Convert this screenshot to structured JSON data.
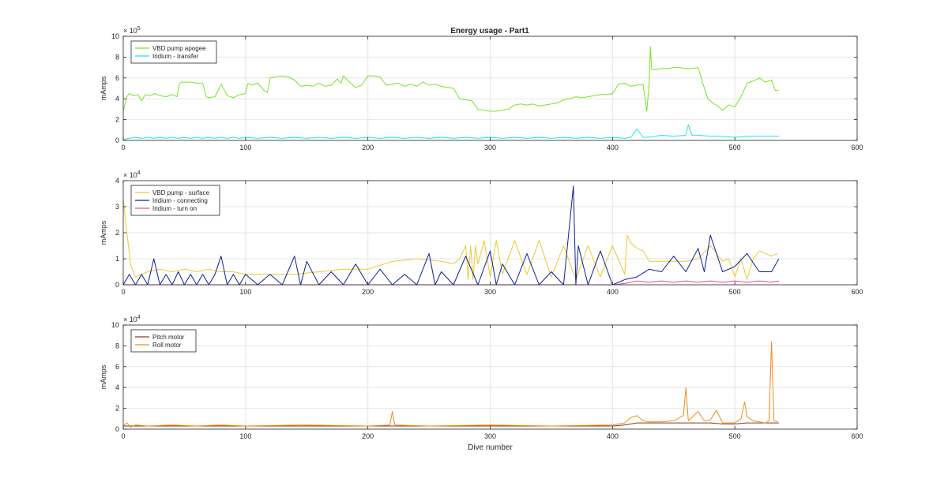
{
  "figure": {
    "title": "Energy usage - Part1"
  },
  "chart_data": [
    {
      "type": "line",
      "title": "Energy usage - Part1",
      "xlabel": "",
      "ylabel": "mAmps",
      "multiplier": {
        "base": "× 10",
        "exp": "5"
      },
      "xlim": [
        0,
        600
      ],
      "ylim": [
        0,
        10
      ],
      "xticks": [
        "0",
        "100",
        "200",
        "300",
        "400",
        "500",
        "600"
      ],
      "yticks": [
        "0",
        "2",
        "4",
        "6",
        "8",
        "10"
      ],
      "xtick_values": [
        0,
        100,
        200,
        300,
        400,
        500,
        600
      ],
      "ytick_values": [
        0,
        2,
        4,
        6,
        8,
        10
      ],
      "grid": true,
      "legend_position": "top-left",
      "series": [
        {
          "name": "VBD pump apogee",
          "color": "#77e522",
          "x": [
            0,
            3,
            5,
            8,
            12,
            15,
            18,
            22,
            26,
            30,
            35,
            40,
            44,
            46,
            48,
            55,
            60,
            65,
            68,
            70,
            75,
            80,
            85,
            90,
            95,
            100,
            102,
            105,
            110,
            115,
            118,
            120,
            125,
            130,
            135,
            140,
            145,
            150,
            155,
            160,
            165,
            170,
            175,
            178,
            180,
            185,
            190,
            195,
            200,
            205,
            210,
            215,
            220,
            225,
            230,
            235,
            240,
            245,
            250,
            255,
            260,
            265,
            270,
            275,
            280,
            285,
            290,
            295,
            300,
            305,
            310,
            315,
            320,
            325,
            330,
            335,
            340,
            345,
            350,
            355,
            360,
            365,
            370,
            375,
            380,
            385,
            390,
            395,
            400,
            405,
            410,
            415,
            420,
            425,
            428,
            430,
            431,
            432,
            435,
            440,
            445,
            450,
            455,
            460,
            465,
            470,
            474,
            478,
            482,
            486,
            490,
            495,
            500,
            505,
            510,
            515,
            520,
            525,
            530,
            533,
            536
          ],
          "values": [
            2.8,
            4.2,
            4.5,
            4.3,
            4.4,
            3.8,
            4.4,
            4.3,
            4.5,
            4.3,
            4.2,
            4.4,
            4.2,
            5.5,
            5.6,
            5.6,
            5.5,
            5.5,
            4.2,
            4.1,
            4.2,
            5.4,
            4.3,
            4.1,
            4.4,
            4.5,
            5.5,
            5.3,
            5.5,
            4.8,
            4.6,
            6.0,
            6.1,
            6.2,
            6.1,
            5.8,
            5.2,
            5.3,
            5.2,
            5.5,
            5.2,
            5.3,
            5.9,
            5.5,
            6.2,
            5.6,
            5.1,
            5.3,
            6.2,
            6.2,
            6.1,
            5.3,
            5.4,
            5.5,
            5.2,
            5.4,
            5.2,
            5.6,
            5.3,
            5.4,
            5.2,
            5.1,
            5.0,
            4.0,
            3.9,
            3.8,
            3.0,
            2.9,
            2.8,
            2.8,
            2.9,
            3.0,
            3.4,
            3.5,
            3.4,
            3.5,
            3.3,
            3.4,
            3.5,
            3.6,
            3.9,
            4.0,
            4.2,
            4.1,
            4.2,
            4.3,
            4.4,
            4.4,
            4.5,
            5.4,
            5.5,
            5.2,
            5.3,
            5.4,
            2.8,
            5.5,
            9.0,
            6.8,
            6.8,
            6.9,
            6.9,
            7.0,
            7.0,
            6.9,
            6.9,
            7.0,
            5.4,
            4.0,
            3.6,
            3.3,
            2.9,
            3.4,
            3.2,
            4.2,
            5.5,
            5.7,
            6.0,
            5.6,
            5.8,
            4.8,
            4.8
          ]
        },
        {
          "name": "Iridium - transfer",
          "color": "#22e5e5",
          "x": [
            0,
            5,
            10,
            15,
            20,
            25,
            30,
            35,
            40,
            45,
            50,
            55,
            60,
            65,
            70,
            75,
            80,
            85,
            90,
            95,
            100,
            110,
            120,
            130,
            140,
            150,
            160,
            170,
            180,
            190,
            200,
            210,
            220,
            230,
            240,
            250,
            260,
            270,
            280,
            290,
            300,
            310,
            320,
            330,
            340,
            350,
            360,
            370,
            380,
            390,
            400,
            410,
            415,
            420,
            425,
            430,
            435,
            440,
            450,
            460,
            462,
            465,
            470,
            480,
            490,
            500,
            510,
            520,
            530,
            536
          ],
          "values": [
            0.1,
            0.2,
            0.3,
            0.2,
            0.3,
            0.2,
            0.3,
            0.2,
            0.3,
            0.2,
            0.3,
            0.2,
            0.3,
            0.2,
            0.3,
            0.2,
            0.3,
            0.2,
            0.3,
            0.2,
            0.3,
            0.2,
            0.3,
            0.2,
            0.3,
            0.2,
            0.3,
            0.2,
            0.3,
            0.2,
            0.3,
            0.2,
            0.3,
            0.2,
            0.3,
            0.2,
            0.3,
            0.2,
            0.3,
            0.2,
            0.3,
            0.2,
            0.3,
            0.2,
            0.3,
            0.2,
            0.3,
            0.2,
            0.3,
            0.2,
            0.3,
            0.2,
            0.3,
            1.1,
            0.3,
            0.3,
            0.4,
            0.5,
            0.4,
            0.5,
            1.5,
            0.5,
            0.5,
            0.4,
            0.4,
            0.3,
            0.4,
            0.4,
            0.4,
            0.4
          ]
        }
      ]
    },
    {
      "type": "line",
      "title": "",
      "xlabel": "",
      "ylabel": "mAmps",
      "multiplier": {
        "base": "× 10",
        "exp": "4"
      },
      "xlim": [
        0,
        600
      ],
      "ylim": [
        0,
        4
      ],
      "xticks": [
        "0",
        "100",
        "200",
        "300",
        "400",
        "500",
        "600"
      ],
      "yticks": [
        "0",
        "1",
        "2",
        "3",
        "4"
      ],
      "xtick_values": [
        0,
        100,
        200,
        300,
        400,
        500,
        600
      ],
      "ytick_values": [
        0,
        1,
        2,
        3,
        4
      ],
      "grid": true,
      "legend_position": "top-left",
      "series": [
        {
          "name": "VBD pump - surface",
          "color": "#ecc92f",
          "x": [
            0,
            3,
            6,
            8,
            10,
            20,
            30,
            40,
            50,
            60,
            70,
            80,
            90,
            100,
            140,
            160,
            180,
            200,
            220,
            240,
            260,
            270,
            275,
            280,
            282,
            284,
            286,
            288,
            290,
            295,
            300,
            305,
            310,
            320,
            330,
            340,
            350,
            360,
            370,
            380,
            390,
            400,
            410,
            412,
            415,
            420,
            425,
            430,
            440,
            450,
            460,
            470,
            480,
            490,
            495,
            500,
            505,
            510,
            515,
            520,
            525,
            530,
            535
          ],
          "values": [
            3.3,
            2.0,
            0.8,
            0.5,
            0.3,
            0.5,
            0.6,
            0.5,
            0.6,
            0.5,
            0.6,
            0.5,
            0.5,
            0.4,
            0.4,
            0.5,
            0.6,
            0.6,
            0.9,
            1.0,
            0.9,
            0.8,
            1.0,
            1.5,
            0.2,
            1.5,
            0.2,
            1.5,
            0.8,
            1.7,
            0.3,
            1.7,
            0.4,
            1.7,
            0.4,
            1.7,
            0.3,
            1.5,
            0.2,
            1.5,
            0.3,
            1.5,
            0.4,
            1.9,
            1.6,
            1.4,
            1.3,
            0.9,
            0.9,
            0.9,
            0.9,
            1.0,
            1.5,
            0.9,
            1.0,
            0.3,
            1.0,
            0.2,
            1.0,
            1.3,
            1.2,
            1.1,
            1.2
          ]
        },
        {
          "name": "Iridium - connecting",
          "color": "#0d1f99",
          "x": [
            0,
            5,
            10,
            15,
            20,
            25,
            30,
            35,
            40,
            45,
            50,
            55,
            60,
            65,
            70,
            75,
            80,
            85,
            90,
            95,
            100,
            110,
            120,
            130,
            140,
            145,
            150,
            160,
            170,
            180,
            190,
            200,
            210,
            220,
            230,
            240,
            250,
            255,
            260,
            270,
            280,
            290,
            300,
            305,
            310,
            320,
            330,
            340,
            350,
            360,
            368,
            370,
            372,
            380,
            390,
            400,
            410,
            420,
            430,
            440,
            450,
            460,
            470,
            475,
            480,
            490,
            500,
            510,
            520,
            530,
            536
          ],
          "values": [
            0.0,
            0.4,
            0.0,
            0.4,
            0.0,
            1.0,
            0.0,
            0.4,
            0.0,
            0.5,
            0.0,
            0.4,
            0.0,
            0.4,
            0.0,
            0.4,
            1.1,
            0.0,
            0.4,
            0.0,
            0.4,
            0.0,
            0.4,
            0.0,
            1.1,
            0.0,
            0.9,
            0.0,
            0.5,
            0.0,
            0.8,
            0.0,
            0.6,
            0.0,
            0.4,
            0.0,
            1.2,
            0.0,
            0.5,
            0.0,
            1.1,
            0.0,
            1.3,
            0.0,
            0.8,
            0.0,
            1.2,
            0.0,
            0.5,
            0.0,
            3.8,
            0.0,
            1.5,
            0.0,
            1.3,
            0.0,
            0.2,
            0.3,
            0.6,
            0.5,
            1.1,
            0.5,
            1.4,
            0.5,
            1.9,
            0.5,
            0.7,
            1.2,
            0.5,
            0.5,
            1.0
          ]
        },
        {
          "name": "Iridium - turn on",
          "color": "#e64d99",
          "x": [
            0,
            50,
            100,
            150,
            200,
            250,
            300,
            350,
            400,
            410,
            420,
            430,
            440,
            450,
            460,
            470,
            480,
            490,
            500,
            510,
            520,
            530,
            536
          ],
          "values": [
            0.0,
            0.0,
            0.0,
            0.0,
            0.0,
            0.0,
            0.0,
            0.0,
            0.0,
            0.05,
            0.15,
            0.1,
            0.15,
            0.1,
            0.15,
            0.1,
            0.15,
            0.1,
            0.15,
            0.1,
            0.15,
            0.1,
            0.15
          ]
        }
      ]
    },
    {
      "type": "line",
      "title": "",
      "xlabel": "Dive number",
      "ylabel": "mAmps",
      "multiplier": {
        "base": "× 10",
        "exp": "4"
      },
      "xlim": [
        0,
        600
      ],
      "ylim": [
        0,
        10
      ],
      "xticks": [
        "0",
        "100",
        "200",
        "300",
        "400",
        "500",
        "600"
      ],
      "yticks": [
        "0",
        "2",
        "4",
        "6",
        "8",
        "10"
      ],
      "xtick_values": [
        0,
        100,
        200,
        300,
        400,
        500,
        600
      ],
      "ytick_values": [
        0,
        2,
        4,
        6,
        8,
        10
      ],
      "grid": true,
      "legend_position": "top-left",
      "series": [
        {
          "name": "Pitch motor",
          "color": "#8b3a12",
          "x": [
            0,
            20,
            40,
            60,
            80,
            100,
            150,
            200,
            250,
            300,
            350,
            400,
            410,
            420,
            430,
            440,
            450,
            460,
            470,
            480,
            490,
            500,
            510,
            520,
            530,
            536
          ],
          "values": [
            0.3,
            0.3,
            0.3,
            0.3,
            0.3,
            0.3,
            0.3,
            0.3,
            0.3,
            0.3,
            0.3,
            0.3,
            0.4,
            0.6,
            0.6,
            0.6,
            0.6,
            0.6,
            0.6,
            0.6,
            0.5,
            0.5,
            0.6,
            0.6,
            0.6,
            0.6
          ]
        },
        {
          "name": "Roll motor",
          "color": "#f28c1a",
          "x": [
            0,
            3,
            6,
            10,
            20,
            40,
            60,
            80,
            100,
            150,
            200,
            218,
            220,
            222,
            250,
            300,
            350,
            400,
            410,
            415,
            420,
            425,
            430,
            440,
            450,
            458,
            460,
            462,
            470,
            475,
            480,
            485,
            490,
            500,
            505,
            508,
            510,
            515,
            520,
            525,
            528,
            530,
            532,
            535
          ],
          "values": [
            0.3,
            0.6,
            0.2,
            0.4,
            0.3,
            0.4,
            0.3,
            0.4,
            0.3,
            0.4,
            0.3,
            0.4,
            1.7,
            0.4,
            0.3,
            0.4,
            0.3,
            0.4,
            0.6,
            1.1,
            1.3,
            0.8,
            0.7,
            0.7,
            0.8,
            1.3,
            4.0,
            0.8,
            1.7,
            0.8,
            0.9,
            1.8,
            0.6,
            0.6,
            1.0,
            2.6,
            1.2,
            0.8,
            0.7,
            0.6,
            0.8,
            8.4,
            0.8,
            0.7
          ]
        }
      ]
    }
  ]
}
